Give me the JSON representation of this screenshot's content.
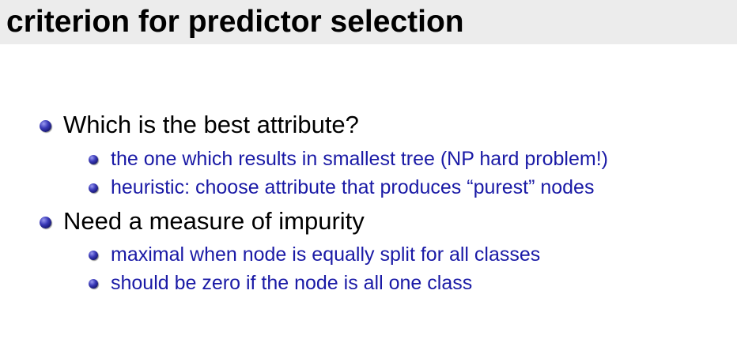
{
  "slide": {
    "title": "criterion for predictor selection",
    "bullets": [
      {
        "text": "Which is the best attribute?",
        "sub": [
          "the one which results in smallest tree (NP hard problem!)",
          "heuristic: choose attribute that produces “purest” nodes"
        ]
      },
      {
        "text": "Need a measure of impurity",
        "sub": [
          "maximal when node is equally split for all classes",
          "should be zero if the node is all one class"
        ]
      }
    ]
  },
  "colors": {
    "title_bar": "#ececec",
    "title_text": "#000000",
    "level1_text": "#000000",
    "level2_text": "#1a1aa6",
    "bullet": "#2a2aa0"
  }
}
